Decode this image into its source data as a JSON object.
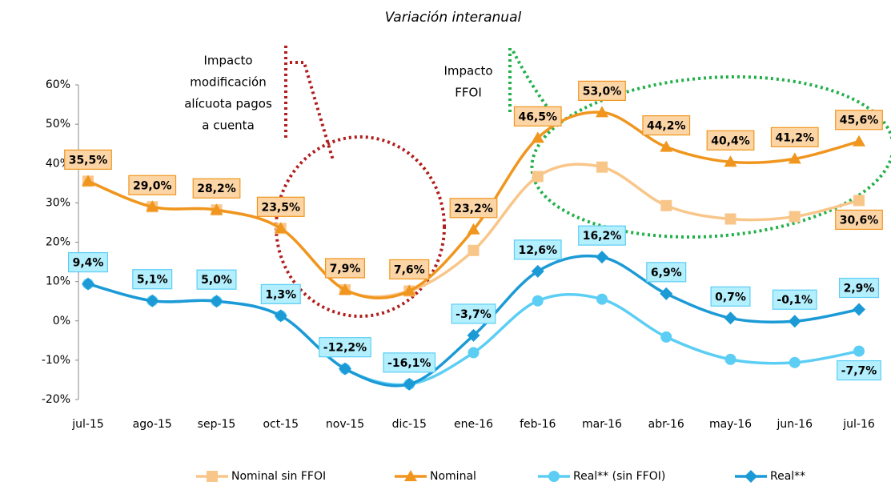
{
  "chart_data": {
    "type": "line",
    "title": "Variación interanual",
    "categories": [
      "jul-15",
      "ago-15",
      "sep-15",
      "oct-15",
      "nov-15",
      "dic-15",
      "ene-16",
      "feb-16",
      "mar-16",
      "abr-16",
      "may-16",
      "jun-16",
      "jul-16"
    ],
    "series": [
      {
        "name": "Nominal sin FFOI",
        "color": "#f9c68a",
        "marker": "square",
        "values": [
          35.5,
          29.0,
          28.2,
          23.5,
          7.9,
          7.6,
          17.9,
          36.7,
          39.1,
          29.3,
          25.9,
          26.5,
          30.6
        ],
        "value_labels": [
          null,
          null,
          null,
          null,
          null,
          null,
          null,
          null,
          null,
          null,
          null,
          null,
          "30,6%"
        ]
      },
      {
        "name": "Nominal",
        "color": "#f0961e",
        "marker": "triangle",
        "values": [
          35.5,
          29.0,
          28.2,
          23.5,
          7.9,
          7.6,
          23.2,
          46.5,
          53.0,
          44.2,
          40.4,
          41.2,
          45.6
        ],
        "value_labels": [
          "35,5%",
          "29,0%",
          "28,2%",
          "23,5%",
          "7,9%",
          "7,6%",
          "23,2%",
          "46,5%",
          "53,0%",
          "44,2%",
          "40,4%",
          "41,2%",
          "45,6%"
        ]
      },
      {
        "name": "Real** (sin FFOI)",
        "color": "#5ccef4",
        "marker": "circle",
        "values": [
          9.4,
          5.1,
          5.0,
          1.3,
          -12.2,
          -16.1,
          -8.1,
          5.1,
          5.5,
          -4.1,
          -9.8,
          -10.6,
          -7.7
        ],
        "value_labels": [
          null,
          null,
          null,
          null,
          null,
          null,
          null,
          null,
          null,
          null,
          null,
          null,
          "-7,7%"
        ]
      },
      {
        "name": "Real**",
        "color": "#1b9ad6",
        "marker": "diamond",
        "values": [
          9.4,
          5.1,
          5.0,
          1.3,
          -12.2,
          -16.1,
          -3.7,
          12.6,
          16.2,
          6.9,
          0.7,
          -0.1,
          2.9
        ],
        "value_labels": [
          "9,4%",
          "5,1%",
          "5,0%",
          "1,3%",
          "-12,2%",
          "-16,1%",
          "-3,7%",
          "12,6%",
          "16,2%",
          "6,9%",
          "0,7%",
          "-0,1%",
          "2,9%"
        ]
      }
    ],
    "ylim": [
      -20,
      60
    ],
    "yticks": [
      {
        "value": -20,
        "label": "-20%"
      },
      {
        "value": -10,
        "label": "-10%"
      },
      {
        "value": 0,
        "label": "0%"
      },
      {
        "value": 10,
        "label": "10%"
      },
      {
        "value": 20,
        "label": "20%"
      },
      {
        "value": 30,
        "label": "30%"
      },
      {
        "value": 40,
        "label": "40%"
      },
      {
        "value": 50,
        "label": "50%"
      },
      {
        "value": 60,
        "label": "60%"
      }
    ],
    "annotations": [
      {
        "lines": [
          "Impacto",
          "modificación",
          "alícuota pagos",
          "a cuenta"
        ]
      },
      {
        "lines": [
          "Impacto",
          "FFOI"
        ]
      }
    ],
    "legend": "bottom"
  }
}
